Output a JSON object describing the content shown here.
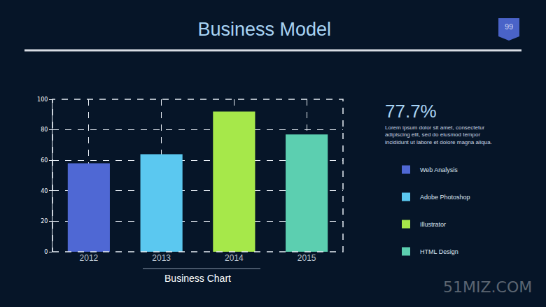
{
  "chart_data": {
    "type": "bar",
    "title": "Business Model",
    "x_label": "Business Chart",
    "categories": [
      "2012",
      "2013",
      "2014",
      "2015"
    ],
    "series": [
      {
        "name": "Web Analysis",
        "color": "#4f68d4",
        "values": [
          58,
          null,
          null,
          null
        ]
      },
      {
        "name": "Adobe Photoshop",
        "color": "#5bc8f0",
        "values": [
          null,
          64,
          null,
          null
        ]
      },
      {
        "name": "Illustrator",
        "color": "#a6e84a",
        "values": [
          null,
          null,
          92,
          null
        ]
      },
      {
        "name": "HTML Design",
        "color": "#5ccfb0",
        "values": [
          null,
          null,
          null,
          77
        ]
      }
    ],
    "ylim": [
      0,
      100
    ],
    "yticks": [
      0,
      20,
      40,
      60,
      80,
      100
    ],
    "grid": true,
    "legend": "right",
    "annotations": [
      {
        "text_lines": [
          "77.7%"
        ]
      },
      {
        "text_lines": [
          "Lorem ipsum dolor sit amet, consectetur",
          "adipiscing elit, sed do eiusmod tempor",
          "incididunt ut labore et dolore magna aliqua."
        ]
      },
      {
        "text_lines": [
          "99"
        ]
      },
      {
        "text_lines": [
          "51MIZ.COM"
        ]
      }
    ]
  }
}
